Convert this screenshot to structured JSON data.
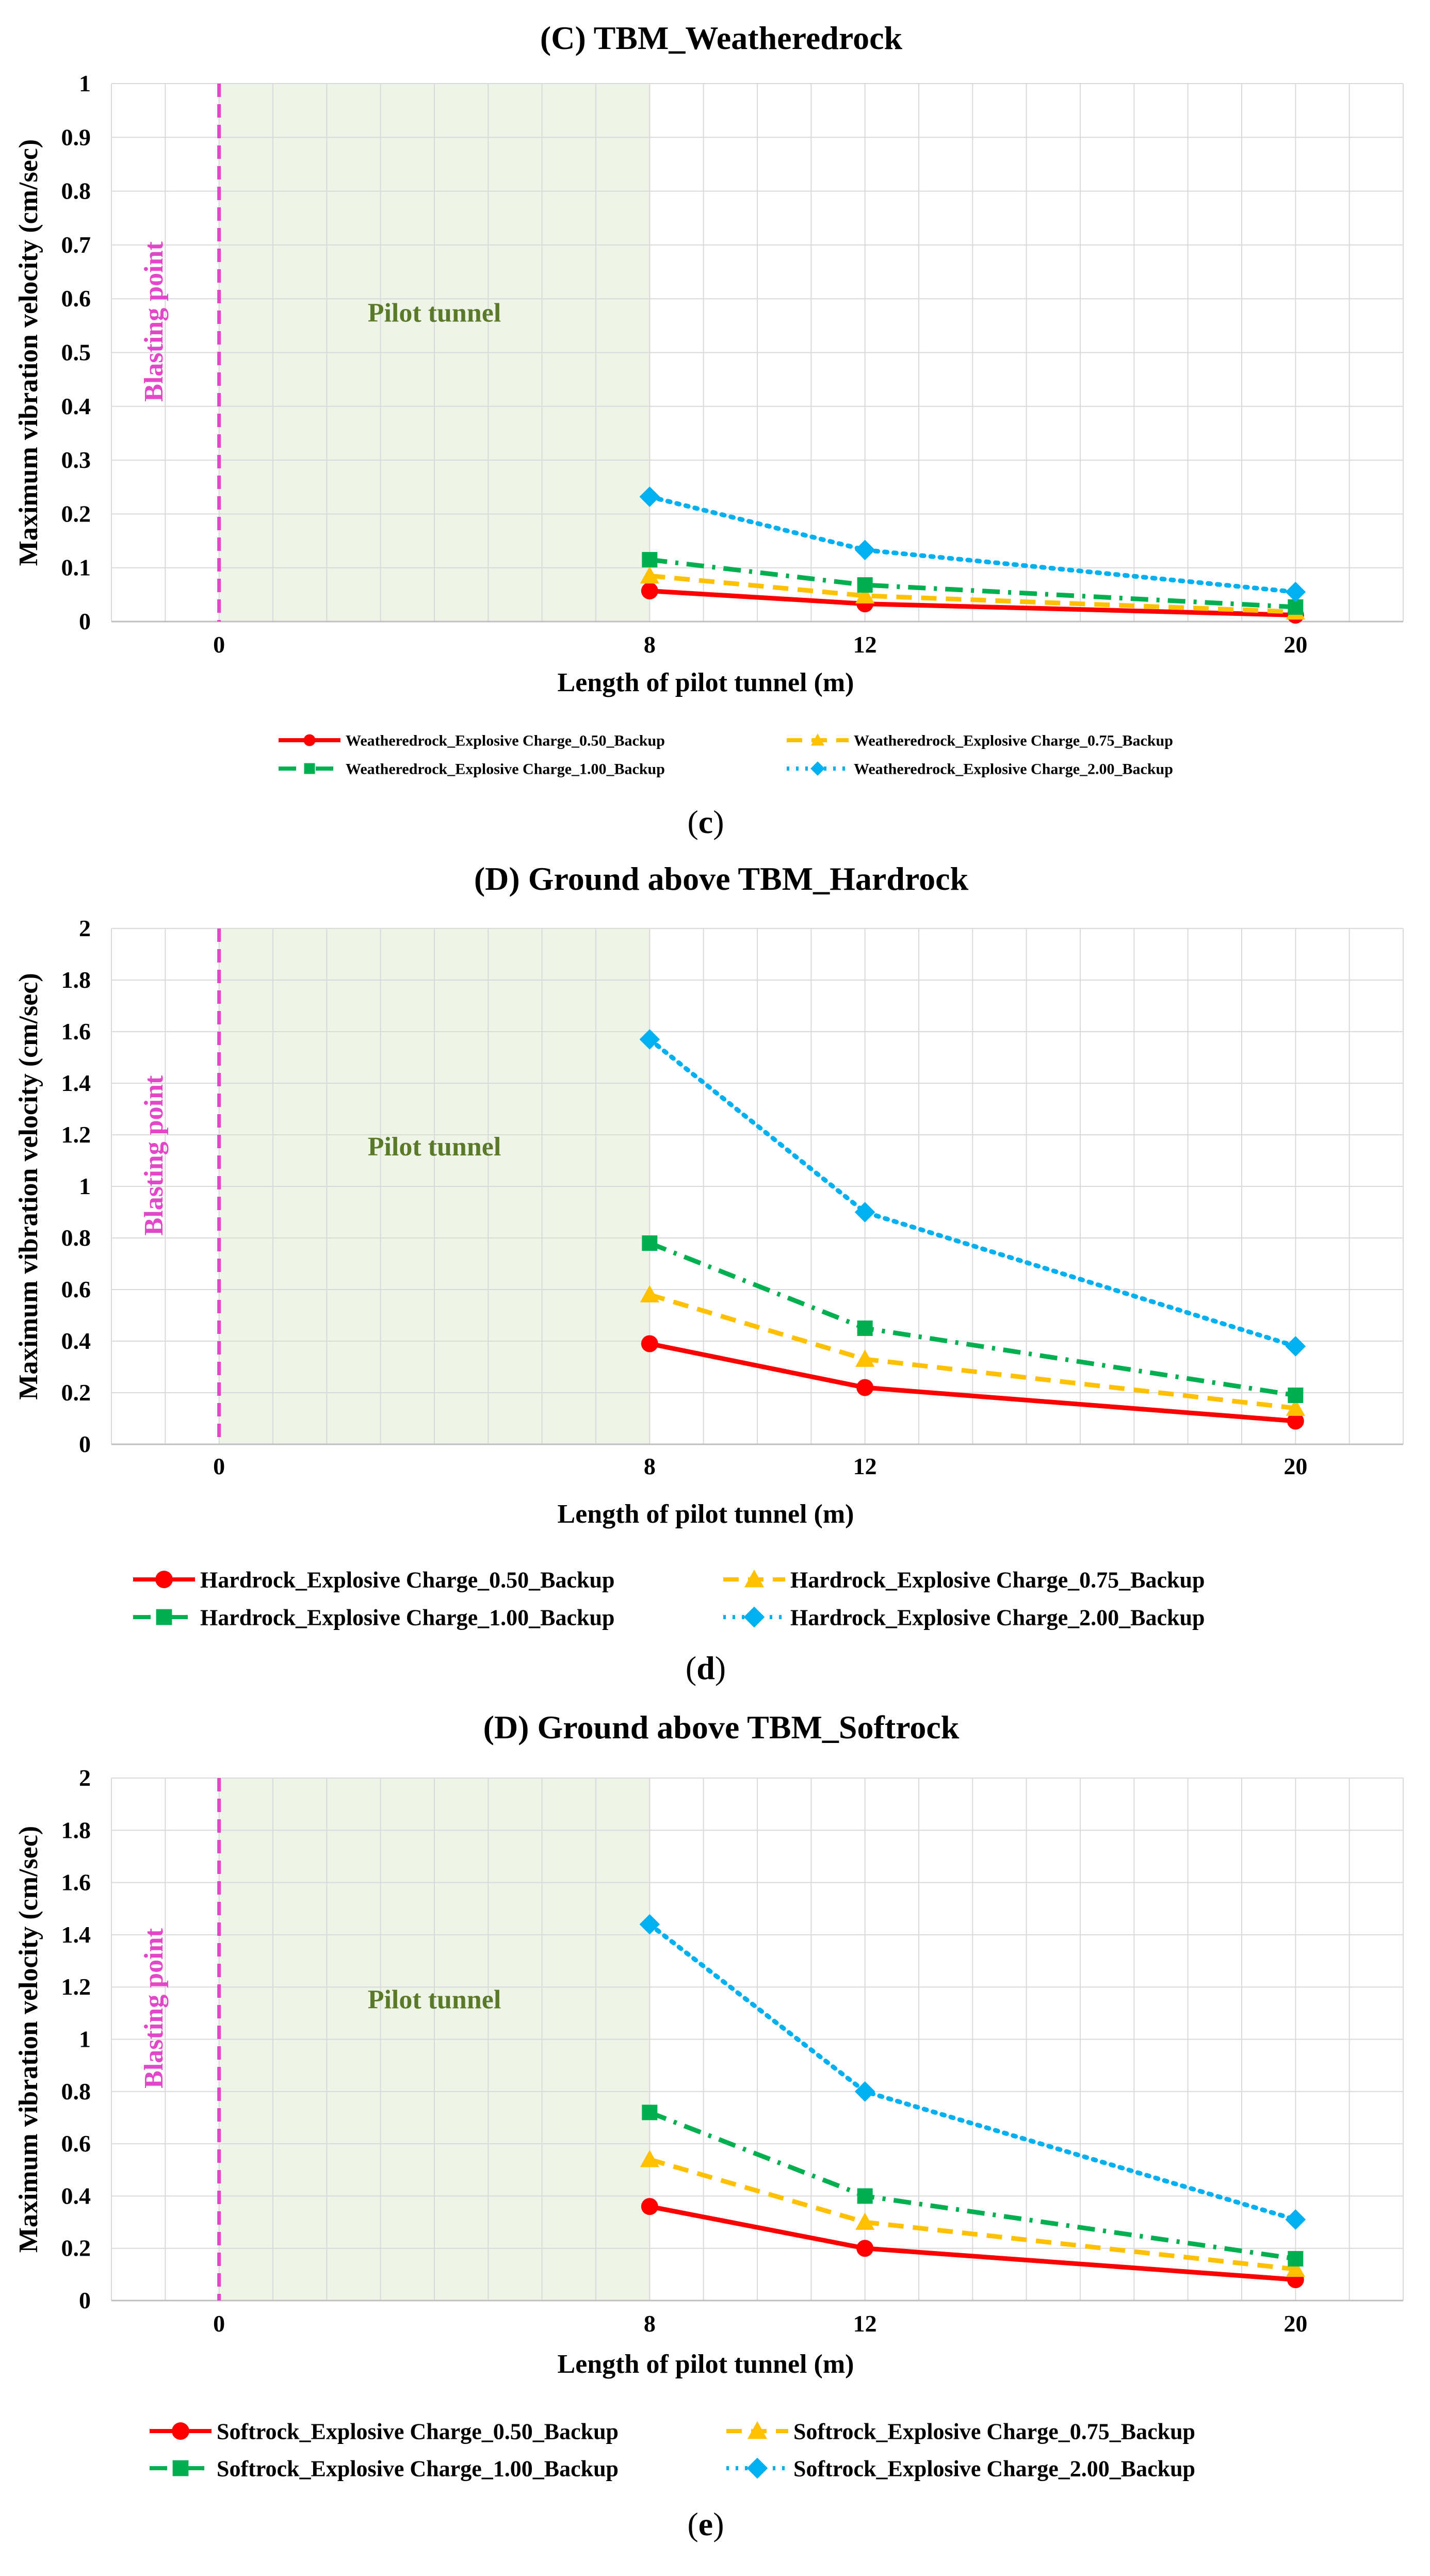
{
  "chart_data": [
    {
      "id": "c",
      "type": "line",
      "title": "(C) TBM_Weatheredrock",
      "panel_label": "c",
      "xlabel": "Length of pilot tunnel (m)",
      "ylabel": "Maximum vibration velocity (cm/sec)",
      "ylim": [
        0,
        1
      ],
      "yticks": [
        0,
        0.1,
        0.2,
        0.3,
        0.4,
        0.5,
        0.6,
        0.7,
        0.8,
        0.9,
        1
      ],
      "ytick_labels": [
        "0",
        "0.1",
        "0.2",
        "0.3",
        "0.4",
        "0.5",
        "0.6",
        "0.7",
        "0.8",
        "0.9",
        "1"
      ],
      "xticks": [
        0,
        8,
        12,
        20
      ],
      "xtick_labels": [
        "0",
        "8",
        "12",
        "20"
      ],
      "blasting_label": "Blasting point",
      "pilot_label": "Pilot tunnel",
      "x": [
        8,
        12,
        20
      ],
      "series": [
        {
          "name": "Weatheredrock_Explosive Charge_0.50_Backup",
          "color": "#ff0000",
          "dash": "solid",
          "marker": "circle",
          "values": [
            0.057,
            0.033,
            0.012
          ]
        },
        {
          "name": "Weatheredrock_Explosive Charge_0.75_Backup",
          "color": "#ffc000",
          "dash": "dashed",
          "marker": "triangle",
          "values": [
            0.085,
            0.048,
            0.018
          ]
        },
        {
          "name": "Weatheredrock_Explosive Charge_1.00_Backup",
          "color": "#00b050",
          "dash": "dashdot",
          "marker": "square",
          "values": [
            0.115,
            0.068,
            0.027
          ]
        },
        {
          "name": "Weatheredrock_Explosive Charge_2.00_Backup",
          "color": "#00b0f0",
          "dash": "dotted",
          "marker": "diamond",
          "values": [
            0.232,
            0.133,
            0.055
          ]
        }
      ]
    },
    {
      "id": "d",
      "type": "line",
      "title": "(D) Ground above TBM_Hardrock",
      "panel_label": "d",
      "xlabel": "Length of pilot tunnel (m)",
      "ylabel": "Maximum vibration velocity (cm/sec)",
      "ylim": [
        0,
        2
      ],
      "yticks": [
        0,
        0.2,
        0.4,
        0.6,
        0.8,
        1,
        1.2,
        1.4,
        1.6,
        1.8,
        2
      ],
      "ytick_labels": [
        "0",
        "0.2",
        "0.4",
        "0.6",
        "0.8",
        "1",
        "1.2",
        "1.4",
        "1.6",
        "1.8",
        "2"
      ],
      "xticks": [
        0,
        8,
        12,
        20
      ],
      "xtick_labels": [
        "0",
        "8",
        "12",
        "20"
      ],
      "blasting_label": "Blasting point",
      "pilot_label": "Pilot tunnel",
      "x": [
        8,
        12,
        20
      ],
      "series": [
        {
          "name": "Hardrock_Explosive Charge_0.50_Backup",
          "color": "#ff0000",
          "dash": "solid",
          "marker": "circle",
          "values": [
            0.39,
            0.22,
            0.09
          ]
        },
        {
          "name": "Hardrock_Explosive Charge_0.75_Backup",
          "color": "#ffc000",
          "dash": "dashed",
          "marker": "triangle",
          "values": [
            0.58,
            0.33,
            0.14
          ]
        },
        {
          "name": "Hardrock_Explosive Charge_1.00_Backup",
          "color": "#00b050",
          "dash": "dashdot",
          "marker": "square",
          "values": [
            0.78,
            0.45,
            0.19
          ]
        },
        {
          "name": "Hardrock_Explosive Charge_2.00_Backup",
          "color": "#00b0f0",
          "dash": "dotted",
          "marker": "diamond",
          "values": [
            1.57,
            0.9,
            0.38
          ]
        }
      ]
    },
    {
      "id": "e",
      "type": "line",
      "title": "(D) Ground above TBM_Softrock",
      "panel_label": "e",
      "xlabel": "Length of pilot tunnel (m)",
      "ylabel": "Maximum vibration velocity (cm/sec)",
      "ylim": [
        0,
        2
      ],
      "yticks": [
        0,
        0.2,
        0.4,
        0.6,
        0.8,
        1,
        1.2,
        1.4,
        1.6,
        1.8,
        2
      ],
      "ytick_labels": [
        "0",
        "0.2",
        "0.4",
        "0.6",
        "0.8",
        "1",
        "1.2",
        "1.4",
        "1.6",
        "1.8",
        "2"
      ],
      "xticks": [
        0,
        8,
        12,
        20
      ],
      "xtick_labels": [
        "0",
        "8",
        "12",
        "20"
      ],
      "blasting_label": "Blasting point",
      "pilot_label": "Pilot tunnel",
      "x": [
        8,
        12,
        20
      ],
      "series": [
        {
          "name": "Softrock_Explosive Charge_0.50_Backup",
          "color": "#ff0000",
          "dash": "solid",
          "marker": "circle",
          "values": [
            0.36,
            0.2,
            0.08
          ]
        },
        {
          "name": "Softrock_Explosive Charge_0.75_Backup",
          "color": "#ffc000",
          "dash": "dashed",
          "marker": "triangle",
          "values": [
            0.54,
            0.3,
            0.12
          ]
        },
        {
          "name": "Softrock_Explosive Charge_1.00_Backup",
          "color": "#00b050",
          "dash": "dashdot",
          "marker": "square",
          "values": [
            0.72,
            0.4,
            0.16
          ]
        },
        {
          "name": "Softrock_Explosive Charge_2.00_Backup",
          "color": "#00b0f0",
          "dash": "dotted",
          "marker": "diamond",
          "values": [
            1.44,
            0.8,
            0.31
          ]
        }
      ]
    }
  ]
}
